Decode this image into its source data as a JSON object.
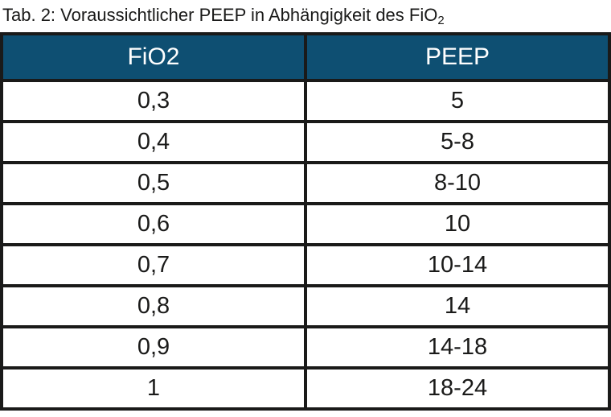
{
  "caption": {
    "text_main": "Tab. 2: Voraussichtlicher PEEP in Abhängigkeit des FiO",
    "text_subscript": "2"
  },
  "table": {
    "headers": {
      "col1": "FiO2",
      "col2": "PEEP"
    },
    "rows": [
      {
        "fio2": "0,3",
        "peep": "5"
      },
      {
        "fio2": "0,4",
        "peep": "5-8"
      },
      {
        "fio2": "0,5",
        "peep": "8-10"
      },
      {
        "fio2": "0,6",
        "peep": "10"
      },
      {
        "fio2": "0,7",
        "peep": "10-14"
      },
      {
        "fio2": "0,8",
        "peep": "14"
      },
      {
        "fio2": "0,9",
        "peep": "14-18"
      },
      {
        "fio2": "1",
        "peep": "18-24"
      }
    ]
  },
  "colors": {
    "header_bg": "#0e4f72",
    "header_text": "#ffffff",
    "border": "#1a1a19",
    "body_text": "#1a1a19",
    "background": "#ffffff"
  }
}
